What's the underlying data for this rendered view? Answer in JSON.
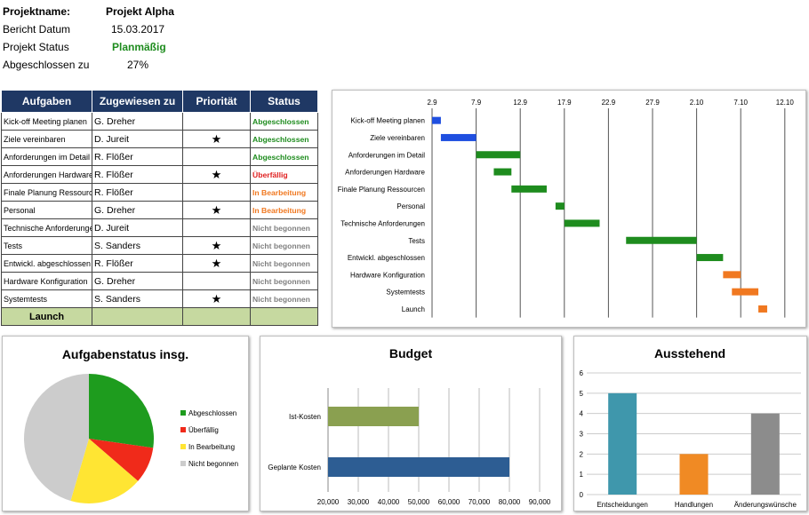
{
  "project": {
    "name_label": "Projektname:",
    "name_value": "Projekt Alpha",
    "date_label": "Bericht Datum",
    "date_value": "15.03.2017",
    "status_label": "Projekt Status",
    "status_value": "Planmäßig",
    "done_label": "Abgeschlossen zu",
    "done_value": "27%"
  },
  "table": {
    "headers": [
      "Aufgaben",
      "Zugewiesen zu",
      "Priorität",
      "Status"
    ],
    "rows": [
      {
        "task": "Kick-off Meeting planen",
        "assignee": "G. Dreher",
        "priority": "",
        "status": "Abgeschlossen"
      },
      {
        "task": "Ziele vereinbaren",
        "assignee": "D. Jureit",
        "priority": "★",
        "status": "Abgeschlossen"
      },
      {
        "task": "Anforderungen  im Detail",
        "assignee": "R. Flößer",
        "priority": "",
        "status": "Abgeschlossen"
      },
      {
        "task": "Anforderungen Hardware",
        "assignee": "R. Flößer",
        "priority": "★",
        "status": "Überfällig"
      },
      {
        "task": "Finale Planung Ressourcen",
        "assignee": "R. Flößer",
        "priority": "",
        "status": "In Bearbeitung"
      },
      {
        "task": "Personal",
        "assignee": "G. Dreher",
        "priority": "★",
        "status": "In Bearbeitung"
      },
      {
        "task": "Technische Anforderungen",
        "assignee": "D. Jureit",
        "priority": "",
        "status": "Nicht begonnen"
      },
      {
        "task": "Tests",
        "assignee": "S. Sanders",
        "priority": "★",
        "status": "Nicht begonnen"
      },
      {
        "task": "Entwickl. abgeschlossen",
        "assignee": "R. Flößer",
        "priority": "★",
        "status": "Nicht begonnen"
      },
      {
        "task": "Hardware Konfiguration",
        "assignee": "G. Dreher",
        "priority": "",
        "status": "Nicht begonnen"
      },
      {
        "task": "Systemtests",
        "assignee": "S. Sanders",
        "priority": "★",
        "status": "Nicht begonnen"
      }
    ],
    "launch_label": "Launch"
  },
  "colors": {
    "Abgeschlossen": "#1e8c1e",
    "Überfällig": "#e02020",
    "In Bearbeitung": "#f07820",
    "Nicht begonnen": "#7f7f7f",
    "header_bg": "#1f3864",
    "planmaessig": "#1e8c1e"
  },
  "chart_data": [
    {
      "type": "bar",
      "subtype": "gantt",
      "x_ticks": [
        "2.9",
        "7.9",
        "12.9",
        "17.9",
        "22.9",
        "27.9",
        "2.10",
        "7.10",
        "12.10"
      ],
      "tasks": [
        {
          "name": "Kick-off Meeting planen",
          "start": "2.9",
          "end": "3.9",
          "color": "#1f4fe0"
        },
        {
          "name": "Ziele vereinbaren",
          "start": "3.9",
          "end": "7.9",
          "color": "#1f4fe0"
        },
        {
          "name": "Anforderungen  im Detail",
          "start": "7.9",
          "end": "12.9",
          "color": "#1e8c1e"
        },
        {
          "name": "Anforderungen Hardware",
          "start": "9.9",
          "end": "11.9",
          "color": "#1e8c1e"
        },
        {
          "name": "Finale Planung Ressourcen",
          "start": "11.9",
          "end": "15.9",
          "color": "#1e8c1e"
        },
        {
          "name": "Personal",
          "start": "16.9",
          "end": "17.9",
          "color": "#1e8c1e"
        },
        {
          "name": "Technische Anforderungen",
          "start": "17.9",
          "end": "21.9",
          "color": "#1e8c1e"
        },
        {
          "name": "Tests",
          "start": "24.9",
          "end": "2.10",
          "color": "#1e8c1e"
        },
        {
          "name": "Entwickl. abgeschlossen",
          "start": "2.10",
          "end": "5.10",
          "color": "#1e8c1e"
        },
        {
          "name": "Hardware Konfiguration",
          "start": "5.10",
          "end": "7.10",
          "color": "#f07820"
        },
        {
          "name": "Systemtests",
          "start": "6.10",
          "end": "9.10",
          "color": "#f07820"
        },
        {
          "name": "Launch",
          "start": "9.10",
          "end": "10.10",
          "color": "#f07820"
        }
      ]
    },
    {
      "type": "pie",
      "title": "Aufgabenstatus insg.",
      "slices": [
        {
          "label": "Abgeschlossen",
          "value": 3,
          "color": "#1e9c1e"
        },
        {
          "label": "Überfällig",
          "value": 1,
          "color": "#f02a1a"
        },
        {
          "label": "In Bearbeitung",
          "value": 2,
          "color": "#ffe533"
        },
        {
          "label": "Nicht begonnen",
          "value": 5,
          "color": "#cccccc"
        }
      ],
      "legend": "right"
    },
    {
      "type": "bar",
      "orientation": "horizontal",
      "title": "Budget",
      "categories": [
        "Ist-Kosten",
        "Geplante Kosten"
      ],
      "values": [
        50000,
        80000
      ],
      "colors": [
        "#8aa050",
        "#2d5d93"
      ],
      "x_ticks": [
        "20,000",
        "30,000",
        "40,000",
        "50,000",
        "60,000",
        "70,000",
        "80,000",
        "90,000"
      ],
      "xlim": [
        20000,
        90000
      ],
      "grid": true
    },
    {
      "type": "bar",
      "title": "Ausstehend",
      "categories": [
        "Entscheidungen",
        "Handlungen",
        "Änderungswünsche"
      ],
      "values": [
        5,
        2,
        4
      ],
      "colors": [
        "#3f97ac",
        "#f08a24",
        "#8c8c8c"
      ],
      "y_ticks": [
        "0",
        "1",
        "2",
        "3",
        "4",
        "5",
        "6"
      ],
      "ylim": [
        0,
        6
      ],
      "grid": true
    }
  ]
}
